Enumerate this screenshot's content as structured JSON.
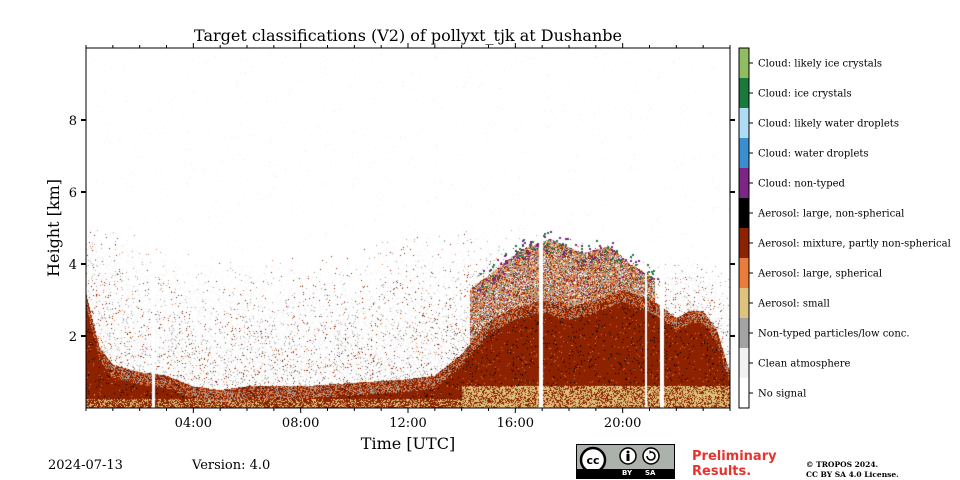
{
  "chart_data": {
    "type": "heatmap",
    "title": "Target classifications (V2) of pollyxt_tjk at Dushanbe",
    "xlabel": "Time [UTC]",
    "ylabel": "Height [km]",
    "xlim_hours": [
      0,
      24
    ],
    "ylim_km": [
      0,
      10
    ],
    "x_ticks": [
      {
        "hour": 4,
        "label": "04:00"
      },
      {
        "hour": 8,
        "label": "08:00"
      },
      {
        "hour": 12,
        "label": "12:00"
      },
      {
        "hour": 16,
        "label": "16:00"
      },
      {
        "hour": 20,
        "label": "20:00"
      }
    ],
    "y_ticks": [
      {
        "km": 2,
        "label": "2"
      },
      {
        "km": 4,
        "label": "4"
      },
      {
        "km": 6,
        "label": "6"
      },
      {
        "km": 8,
        "label": "8"
      }
    ],
    "classes": [
      {
        "code": 11,
        "label": "Cloud: likely ice crystals",
        "color": "#8fbd5f"
      },
      {
        "code": 10,
        "label": "Cloud: ice crystals",
        "color": "#1a7a3c"
      },
      {
        "code": 9,
        "label": "Cloud: likely water droplets",
        "color": "#aedcf5"
      },
      {
        "code": 8,
        "label": "Cloud: water droplets",
        "color": "#3b8fd0"
      },
      {
        "code": 7,
        "label": "Cloud: non-typed",
        "color": "#7b2585"
      },
      {
        "code": 6,
        "label": "Aerosol: large, non-spherical",
        "color": "#000000"
      },
      {
        "code": 5,
        "label": "Aerosol: mixture, partly non-spherical",
        "color": "#8c2200"
      },
      {
        "code": 4,
        "label": "Aerosol: large, spherical",
        "color": "#ec7a3a"
      },
      {
        "code": 3,
        "label": "Aerosol: small",
        "color": "#dfc27d"
      },
      {
        "code": 2,
        "label": "Non-typed particles/low conc.",
        "color": "#a3a3a3"
      },
      {
        "code": 1,
        "label": "Clean atmosphere",
        "color": "#f2f2f2"
      },
      {
        "code": 0,
        "label": "No signal",
        "color": "#ffffff"
      }
    ],
    "aerosol_layer_top_km": [
      [
        0.0,
        3.2
      ],
      [
        0.5,
        1.7
      ],
      [
        1.0,
        1.2
      ],
      [
        2.0,
        1.0
      ],
      [
        3.0,
        0.9
      ],
      [
        4.0,
        0.6
      ],
      [
        5.0,
        0.5
      ],
      [
        6.0,
        0.6
      ],
      [
        8.0,
        0.6
      ],
      [
        10.0,
        0.7
      ],
      [
        12.0,
        0.8
      ],
      [
        13.0,
        0.9
      ],
      [
        14.0,
        1.5
      ],
      [
        15.0,
        2.4
      ],
      [
        16.0,
        2.8
      ],
      [
        17.0,
        3.0
      ],
      [
        18.0,
        2.8
      ],
      [
        19.0,
        3.0
      ],
      [
        20.0,
        3.3
      ],
      [
        21.0,
        3.0
      ],
      [
        21.3,
        2.9
      ],
      [
        22.0,
        2.5
      ],
      [
        22.5,
        2.7
      ],
      [
        23.0,
        2.7
      ],
      [
        23.5,
        2.2
      ],
      [
        24.0,
        1.0
      ]
    ],
    "dust_plume_top_km": [
      [
        14.3,
        3.3
      ],
      [
        15.2,
        3.8
      ],
      [
        16.2,
        4.4
      ],
      [
        17.3,
        4.7
      ],
      [
        18.5,
        4.3
      ],
      [
        19.5,
        4.5
      ],
      [
        20.3,
        4.0
      ],
      [
        21.2,
        3.6
      ]
    ],
    "noise_top_km": [
      [
        0.0,
        5.5
      ],
      [
        3.0,
        4.5
      ],
      [
        5.0,
        4.3
      ],
      [
        8.0,
        4.2
      ],
      [
        10.0,
        4.5
      ],
      [
        12.0,
        5.0
      ],
      [
        14.0,
        5.0
      ],
      [
        16.0,
        5.0
      ],
      [
        24.0,
        4.0
      ]
    ],
    "data_gaps_hours": [
      [
        2.48,
        2.55
      ],
      [
        16.9,
        17.0
      ],
      [
        20.85,
        20.87
      ],
      [
        21.4,
        21.53
      ]
    ]
  },
  "footer": {
    "date": "2024-07-13",
    "version": "Version: 4.0",
    "prelim_line1": "Preliminary",
    "prelim_line2": "Results.",
    "copyright_line1": "© TROPOS 2024.",
    "copyright_line2": "CC BY SA 4.0 License.",
    "license_badge": {
      "cc": "cc",
      "by": "BY",
      "sa": "SA"
    }
  }
}
